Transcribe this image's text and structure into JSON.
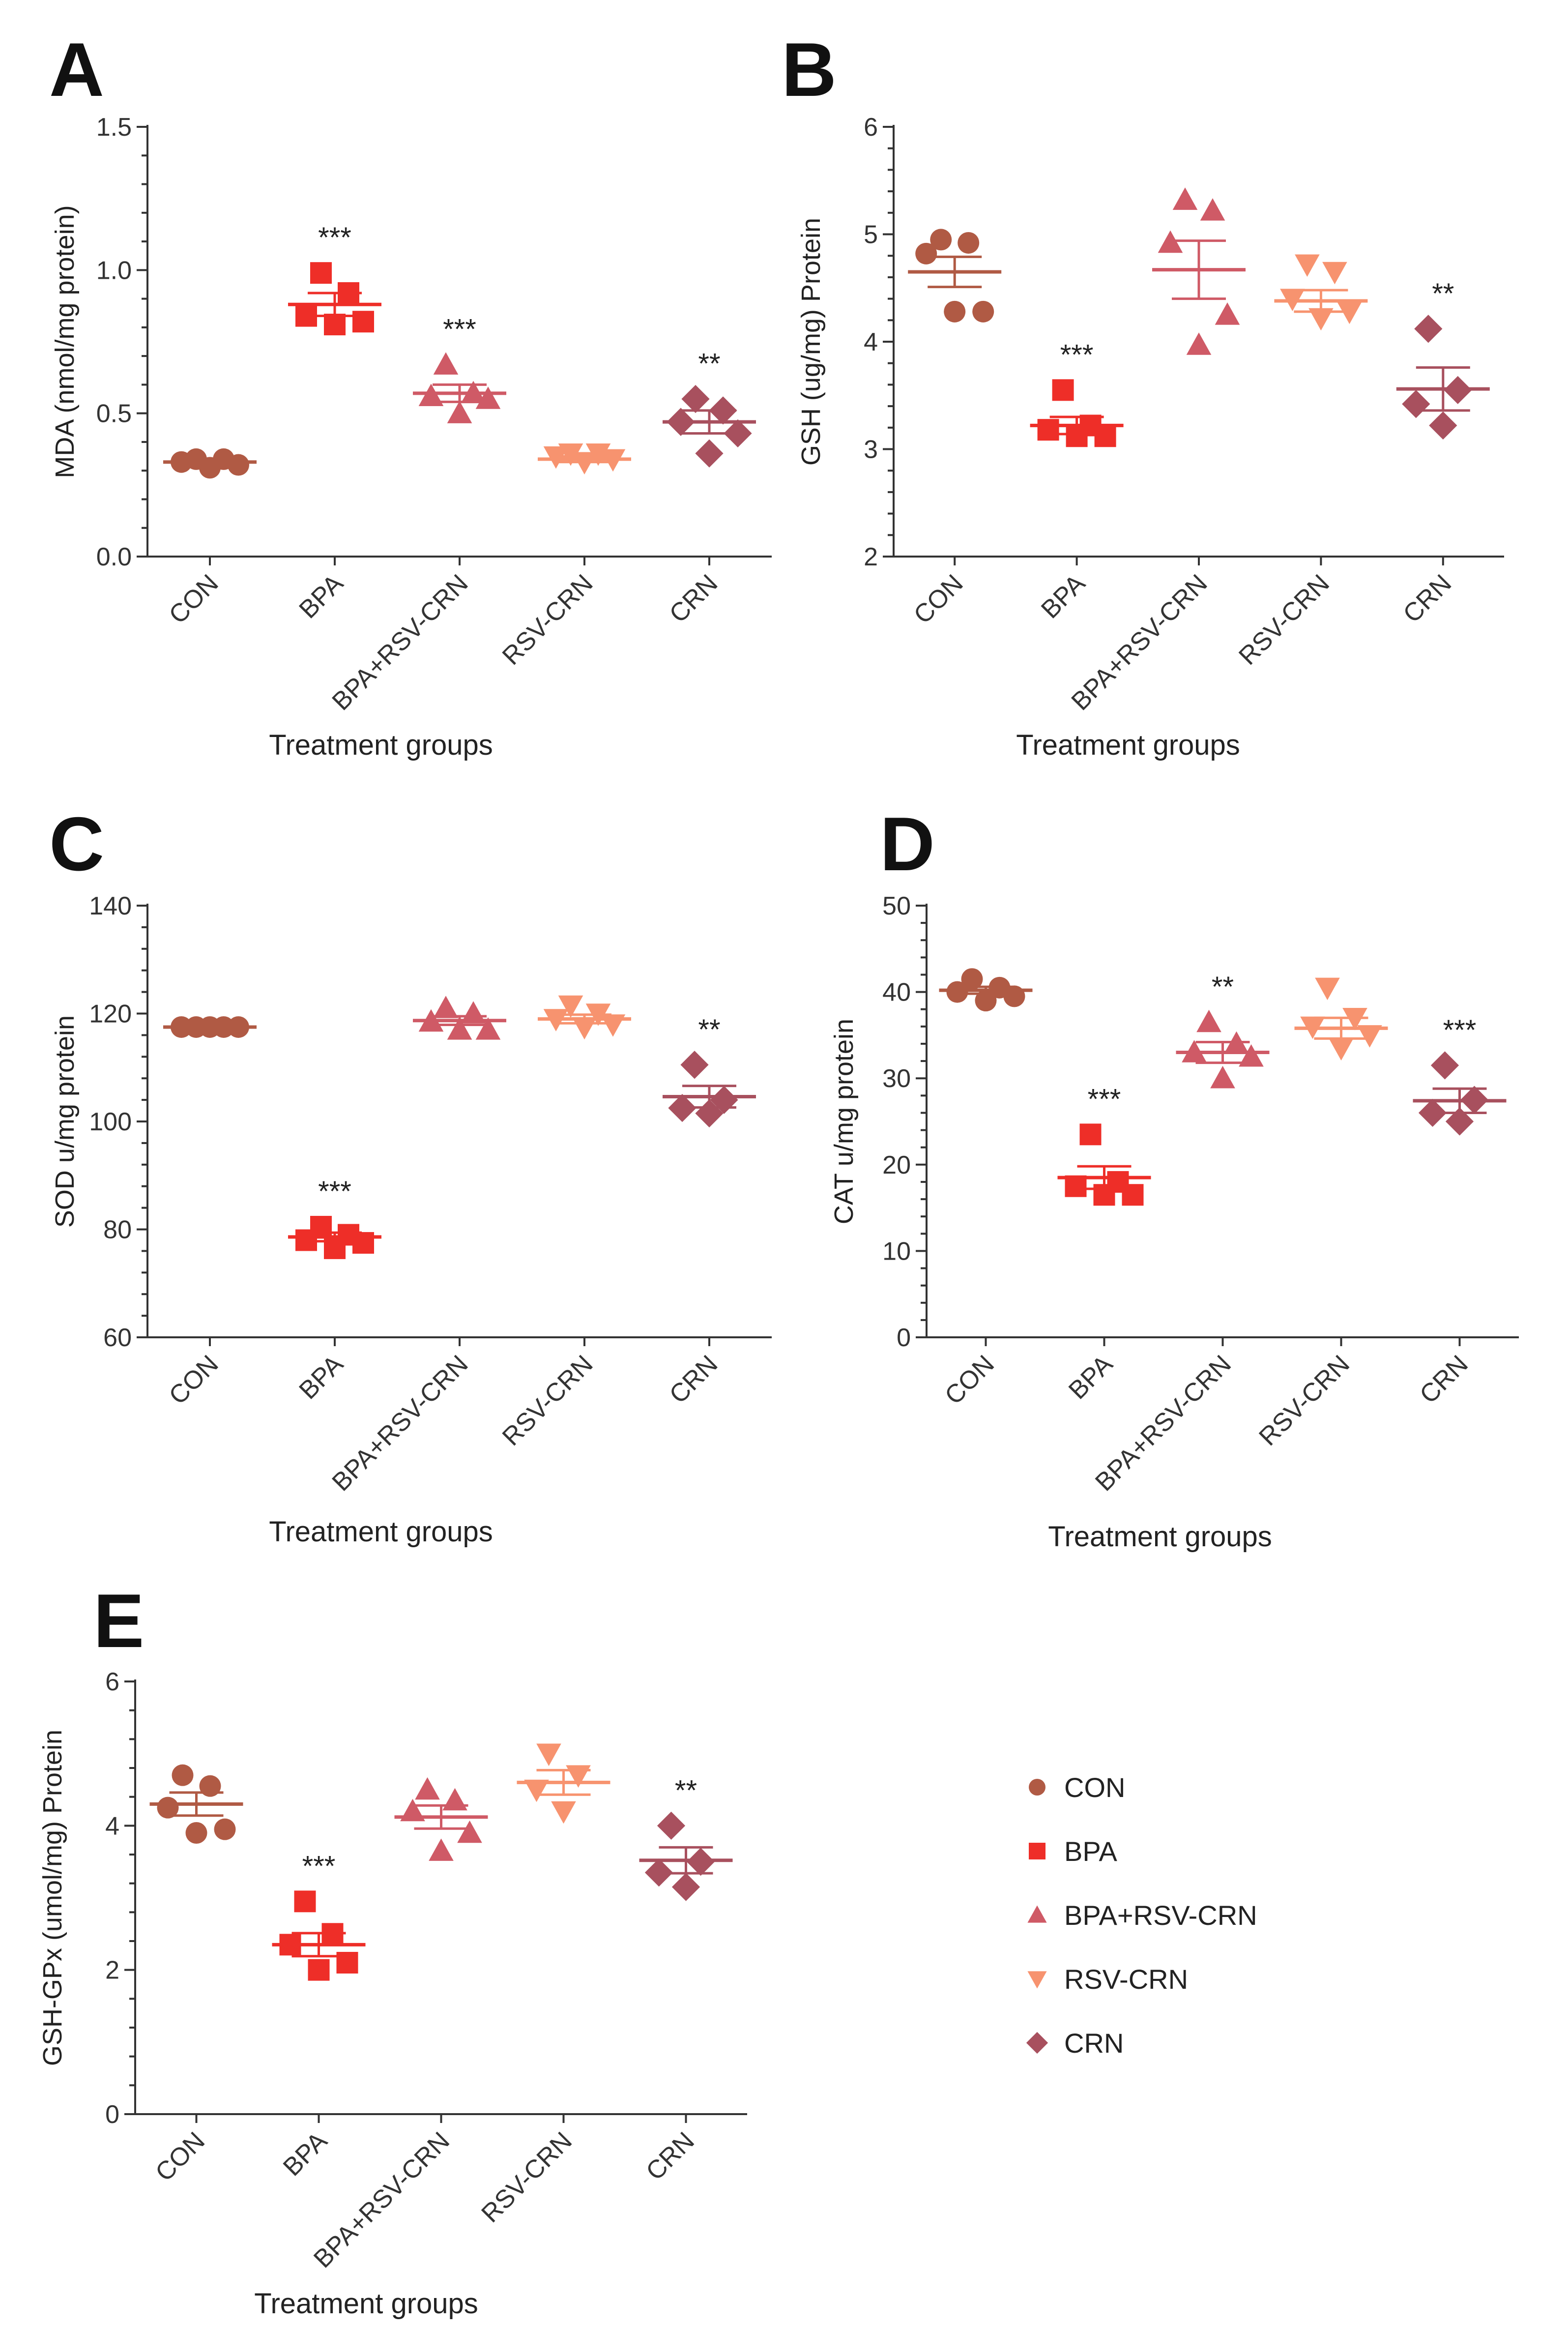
{
  "colors": {
    "CON": "#b05a44",
    "BPA": "#ee2e28",
    "BPA+RSV-CRN": "#cf5a66",
    "RSV-CRN": "#f7936f",
    "CRN": "#a8505e"
  },
  "legend": {
    "items": [
      {
        "label": "CON",
        "marker": "circle",
        "group": "CON"
      },
      {
        "label": "BPA",
        "marker": "square",
        "group": "BPA"
      },
      {
        "label": "BPA+RSV-CRN",
        "marker": "triangle-up",
        "group": "BPA+RSV-CRN"
      },
      {
        "label": "RSV-CRN",
        "marker": "triangle-down",
        "group": "RSV-CRN"
      },
      {
        "label": "CRN",
        "marker": "diamond",
        "group": "CRN"
      }
    ]
  },
  "chart_data": [
    {
      "panel": "A",
      "type": "scatter",
      "ylabel": "MDA (nmol/mg protein)",
      "xlabel": "Treatment groups",
      "ylim": [
        0,
        1.5
      ],
      "yticks": [
        "0.0",
        "0.5",
        "1.0",
        "1.5"
      ],
      "categories": [
        "CON",
        "BPA",
        "BPA+RSV-CRN",
        "RSV-CRN",
        "CRN"
      ],
      "groups": [
        {
          "name": "CON",
          "points": [
            0.33,
            0.34,
            0.31,
            0.34,
            0.32
          ],
          "mean": 0.33,
          "sem": 0.01,
          "sig": ""
        },
        {
          "name": "BPA",
          "points": [
            0.99,
            0.92,
            0.84,
            0.82,
            0.81
          ],
          "mean": 0.88,
          "sem": 0.04,
          "sig": "***"
        },
        {
          "name": "BPA+RSV-CRN",
          "points": [
            0.67,
            0.57,
            0.56,
            0.55,
            0.5
          ],
          "mean": 0.57,
          "sem": 0.03,
          "sig": "***"
        },
        {
          "name": "RSV-CRN",
          "points": [
            0.36,
            0.34,
            0.35,
            0.36,
            0.33
          ],
          "mean": 0.34,
          "sem": 0.01,
          "sig": ""
        },
        {
          "name": "CRN",
          "points": [
            0.55,
            0.51,
            0.47,
            0.43,
            0.36
          ],
          "mean": 0.47,
          "sem": 0.04,
          "sig": "**"
        }
      ]
    },
    {
      "panel": "B",
      "type": "scatter",
      "ylabel": "GSH (ug/mg) Protein",
      "xlabel": "Treatment groups",
      "ylim": [
        2,
        6
      ],
      "yticks": [
        "2",
        "3",
        "4",
        "5",
        "6"
      ],
      "categories": [
        "CON",
        "BPA",
        "BPA+RSV-CRN",
        "RSV-CRN",
        "CRN"
      ],
      "groups": [
        {
          "name": "CON",
          "points": [
            4.95,
            4.92,
            4.82,
            4.28,
            4.28
          ],
          "mean": 4.65,
          "sem": 0.14,
          "sig": ""
        },
        {
          "name": "BPA",
          "points": [
            3.55,
            3.22,
            3.18,
            3.12,
            3.12
          ],
          "mean": 3.22,
          "sem": 0.08,
          "sig": "***"
        },
        {
          "name": "BPA+RSV-CRN",
          "points": [
            5.32,
            5.22,
            4.92,
            4.25,
            3.97
          ],
          "mean": 4.67,
          "sem": 0.27,
          "sig": ""
        },
        {
          "name": "RSV-CRN",
          "points": [
            4.72,
            4.65,
            4.4,
            4.28,
            4.22
          ],
          "mean": 4.38,
          "sem": 0.1,
          "sig": ""
        },
        {
          "name": "CRN",
          "points": [
            4.12,
            3.55,
            3.42,
            3.22
          ],
          "mean": 3.56,
          "sem": 0.2,
          "sig": "**"
        }
      ]
    },
    {
      "panel": "C",
      "type": "scatter",
      "ylabel": "SOD u/mg protein",
      "xlabel": "Treatment groups",
      "ylim": [
        60,
        140
      ],
      "yticks": [
        "60",
        "80",
        "100",
        "120",
        "140"
      ],
      "categories": [
        "CON",
        "BPA",
        "BPA+RSV-CRN",
        "RSV-CRN",
        "CRN"
      ],
      "groups": [
        {
          "name": "CON",
          "points": [
            117.5,
            117.5,
            117.5,
            117.5,
            117.5
          ],
          "mean": 117.5,
          "sem": 0.3,
          "sig": ""
        },
        {
          "name": "BPA",
          "points": [
            80.5,
            79.0,
            78.0,
            77.5,
            76.5
          ],
          "mean": 78.6,
          "sem": 0.8,
          "sig": "***"
        },
        {
          "name": "BPA+RSV-CRN",
          "points": [
            121.0,
            120.0,
            118.5,
            117.0,
            117.0
          ],
          "mean": 118.7,
          "sem": 0.8,
          "sig": ""
        },
        {
          "name": "RSV-CRN",
          "points": [
            121.5,
            120.0,
            119.0,
            118.0,
            117.5
          ],
          "mean": 119.0,
          "sem": 0.8,
          "sig": ""
        },
        {
          "name": "CRN",
          "points": [
            110.5,
            104.0,
            102.5,
            101.5
          ],
          "mean": 104.6,
          "sem": 2.0,
          "sig": "**"
        }
      ]
    },
    {
      "panel": "D",
      "type": "scatter",
      "ylabel": "CAT u/mg protein",
      "xlabel": "Treatment groups",
      "ylim": [
        0,
        50
      ],
      "yticks": [
        "0",
        "10",
        "20",
        "30",
        "40",
        "50"
      ],
      "categories": [
        "CON",
        "BPA",
        "BPA+RSV-CRN",
        "RSV-CRN",
        "CRN"
      ],
      "groups": [
        {
          "name": "CON",
          "points": [
            41.5,
            40.5,
            40.0,
            39.5,
            39.0
          ],
          "mean": 40.2,
          "sem": 0.4,
          "sig": ""
        },
        {
          "name": "BPA",
          "points": [
            23.5,
            18.0,
            17.5,
            16.5,
            16.5
          ],
          "mean": 18.5,
          "sem": 1.3,
          "sig": "***"
        },
        {
          "name": "BPA+RSV-CRN",
          "points": [
            36.5,
            34.0,
            33.0,
            32.5,
            30.0
          ],
          "mean": 33.0,
          "sem": 1.2,
          "sig": "**"
        },
        {
          "name": "RSV-CRN",
          "points": [
            40.5,
            37.0,
            36.0,
            35.0,
            33.5
          ],
          "mean": 35.8,
          "sem": 1.2,
          "sig": ""
        },
        {
          "name": "CRN",
          "points": [
            31.5,
            27.5,
            26.0,
            25.0
          ],
          "mean": 27.4,
          "sem": 1.4,
          "sig": "***"
        }
      ]
    },
    {
      "panel": "E",
      "type": "scatter",
      "ylabel": "GSH-GPx (umol/mg) Protein",
      "xlabel": "Treatment groups",
      "ylim": [
        0,
        6
      ],
      "yticks": [
        "0",
        "2",
        "4",
        "6"
      ],
      "categories": [
        "CON",
        "BPA",
        "BPA+RSV-CRN",
        "RSV-CRN",
        "CRN"
      ],
      "groups": [
        {
          "name": "CON",
          "points": [
            4.7,
            4.55,
            4.25,
            3.95,
            3.9
          ],
          "mean": 4.3,
          "sem": 0.16,
          "sig": ""
        },
        {
          "name": "BPA",
          "points": [
            2.95,
            2.5,
            2.35,
            2.1,
            2.0
          ],
          "mean": 2.35,
          "sem": 0.16,
          "sig": "***"
        },
        {
          "name": "BPA+RSV-CRN",
          "points": [
            4.5,
            4.35,
            4.2,
            3.9,
            3.65
          ],
          "mean": 4.12,
          "sem": 0.16,
          "sig": ""
        },
        {
          "name": "RSV-CRN",
          "points": [
            5.0,
            4.7,
            4.5,
            4.2
          ],
          "mean": 4.6,
          "sem": 0.17,
          "sig": ""
        },
        {
          "name": "CRN",
          "points": [
            4.0,
            3.5,
            3.35,
            3.15
          ],
          "mean": 3.52,
          "sem": 0.18,
          "sig": "**"
        }
      ]
    }
  ]
}
